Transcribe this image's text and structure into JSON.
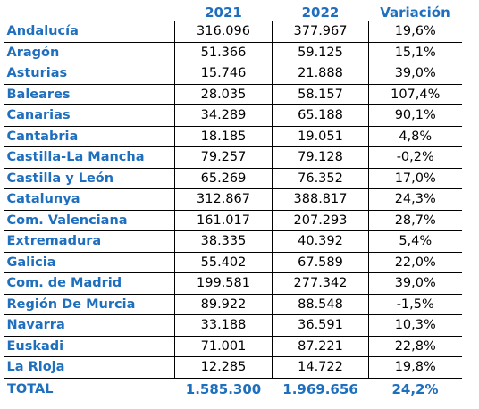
{
  "colors": {
    "accent": "#1f6fbf",
    "text": "#000000",
    "background": "#ffffff",
    "border": "#000000"
  },
  "header": {
    "col_region": "",
    "col_2021": "2021",
    "col_2022": "2022",
    "col_variation": "Variación"
  },
  "rows": [
    {
      "region": "Andalucía",
      "y2021": "316.096",
      "y2022": "377.967",
      "variation": "19,6%"
    },
    {
      "region": "Aragón",
      "y2021": "51.366",
      "y2022": "59.125",
      "variation": "15,1%"
    },
    {
      "region": "Asturias",
      "y2021": "15.746",
      "y2022": "21.888",
      "variation": "39,0%"
    },
    {
      "region": "Baleares",
      "y2021": "28.035",
      "y2022": "58.157",
      "variation": "107,4%"
    },
    {
      "region": "Canarias",
      "y2021": "34.289",
      "y2022": "65.188",
      "variation": "90,1%"
    },
    {
      "region": "Cantabria",
      "y2021": "18.185",
      "y2022": "19.051",
      "variation": "4,8%"
    },
    {
      "region": "Castilla-La Mancha",
      "y2021": "79.257",
      "y2022": "79.128",
      "variation": "-0,2%"
    },
    {
      "region": "Castilla y León",
      "y2021": "65.269",
      "y2022": "76.352",
      "variation": "17,0%"
    },
    {
      "region": "Catalunya",
      "y2021": "312.867",
      "y2022": "388.817",
      "variation": "24,3%"
    },
    {
      "region": "Com. Valenciana",
      "y2021": "161.017",
      "y2022": "207.293",
      "variation": "28,7%"
    },
    {
      "region": "Extremadura",
      "y2021": "38.335",
      "y2022": "40.392",
      "variation": "5,4%"
    },
    {
      "region": "Galicia",
      "y2021": "55.402",
      "y2022": "67.589",
      "variation": "22,0%"
    },
    {
      "region": "Com. de Madrid",
      "y2021": "199.581",
      "y2022": "277.342",
      "variation": "39,0%"
    },
    {
      "region": "Región De Murcia",
      "y2021": "89.922",
      "y2022": "88.548",
      "variation": "-1,5%"
    },
    {
      "region": "Navarra",
      "y2021": "33.188",
      "y2022": "36.591",
      "variation": "10,3%"
    },
    {
      "region": "Euskadi",
      "y2021": "71.001",
      "y2022": "87.221",
      "variation": "22,8%"
    },
    {
      "region": "La Rioja",
      "y2021": "12.285",
      "y2022": "14.722",
      "variation": "19,8%"
    }
  ],
  "total": {
    "label": "TOTAL",
    "y2021": "1.585.300",
    "y2022": "1.969.656",
    "variation": "24,2%"
  }
}
